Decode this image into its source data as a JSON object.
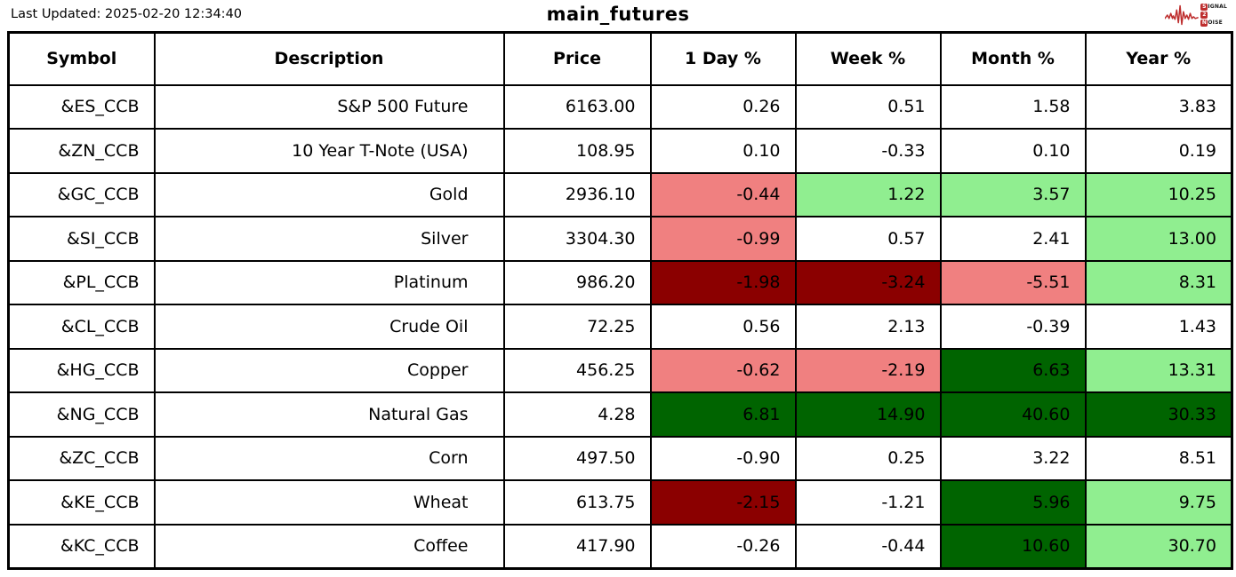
{
  "header": {
    "last_updated": "Last Updated: 2025-02-20 12:34:40"
  },
  "logo": {
    "line1_initial": "S",
    "line1_rest": "IGNAL",
    "line2_initial": "2",
    "line3_initial": "N",
    "line3_rest": "OISE"
  },
  "colors": {
    "logo_red": "#be2e2e",
    "light_red": "#f08080",
    "dark_red": "#8b0000",
    "light_green": "#90ee90",
    "dark_green": "#006400",
    "none": "#ffffff"
  },
  "chart_data": {
    "type": "table",
    "title": "main_futures",
    "columns": [
      "Symbol",
      "Description",
      "Price",
      "1 Day %",
      "Week %",
      "Month %",
      "Year %"
    ],
    "rows": [
      {
        "symbol": "&ES_CCB",
        "description": "S&P 500 Future",
        "price": "6163.00",
        "changes": [
          "0.26",
          "0.51",
          "1.58",
          "3.83"
        ],
        "change_bgs": [
          "none",
          "none",
          "none",
          "none"
        ]
      },
      {
        "symbol": "&ZN_CCB",
        "description": "10 Year T-Note (USA)",
        "price": "108.95",
        "changes": [
          "0.10",
          "-0.33",
          "0.10",
          "0.19"
        ],
        "change_bgs": [
          "none",
          "none",
          "none",
          "none"
        ]
      },
      {
        "symbol": "&GC_CCB",
        "description": "Gold",
        "price": "2936.10",
        "changes": [
          "-0.44",
          "1.22",
          "3.57",
          "10.25"
        ],
        "change_bgs": [
          "light_red",
          "light_green",
          "light_green",
          "light_green"
        ]
      },
      {
        "symbol": "&SI_CCB",
        "description": "Silver",
        "price": "3304.30",
        "changes": [
          "-0.99",
          "0.57",
          "2.41",
          "13.00"
        ],
        "change_bgs": [
          "light_red",
          "none",
          "none",
          "light_green"
        ]
      },
      {
        "symbol": "&PL_CCB",
        "description": "Platinum",
        "price": "986.20",
        "changes": [
          "-1.98",
          "-3.24",
          "-5.51",
          "8.31"
        ],
        "change_bgs": [
          "dark_red",
          "dark_red",
          "light_red",
          "light_green"
        ]
      },
      {
        "symbol": "&CL_CCB",
        "description": "Crude Oil",
        "price": "72.25",
        "changes": [
          "0.56",
          "2.13",
          "-0.39",
          "1.43"
        ],
        "change_bgs": [
          "none",
          "none",
          "none",
          "none"
        ]
      },
      {
        "symbol": "&HG_CCB",
        "description": "Copper",
        "price": "456.25",
        "changes": [
          "-0.62",
          "-2.19",
          "6.63",
          "13.31"
        ],
        "change_bgs": [
          "light_red",
          "light_red",
          "dark_green",
          "light_green"
        ]
      },
      {
        "symbol": "&NG_CCB",
        "description": "Natural Gas",
        "price": "4.28",
        "changes": [
          "6.81",
          "14.90",
          "40.60",
          "30.33"
        ],
        "change_bgs": [
          "dark_green",
          "dark_green",
          "dark_green",
          "dark_green"
        ]
      },
      {
        "symbol": "&ZC_CCB",
        "description": "Corn",
        "price": "497.50",
        "changes": [
          "-0.90",
          "0.25",
          "3.22",
          "8.51"
        ],
        "change_bgs": [
          "none",
          "none",
          "none",
          "none"
        ]
      },
      {
        "symbol": "&KE_CCB",
        "description": "Wheat",
        "price": "613.75",
        "changes": [
          "-2.15",
          "-1.21",
          "5.96",
          "9.75"
        ],
        "change_bgs": [
          "dark_red",
          "none",
          "dark_green",
          "light_green"
        ]
      },
      {
        "symbol": "&KC_CCB",
        "description": "Coffee",
        "price": "417.90",
        "changes": [
          "-0.26",
          "-0.44",
          "10.60",
          "30.70"
        ],
        "change_bgs": [
          "none",
          "none",
          "dark_green",
          "light_green"
        ]
      }
    ]
  }
}
